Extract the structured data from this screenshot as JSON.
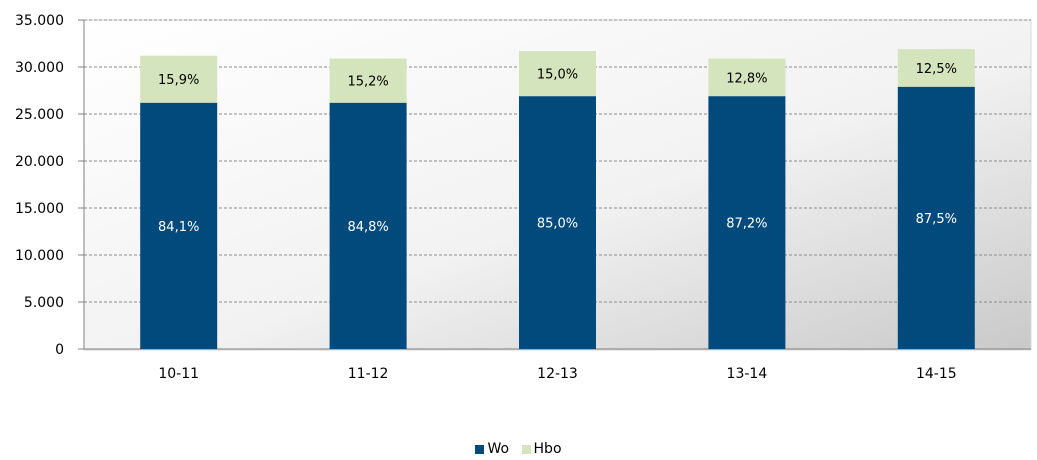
{
  "chart_data": {
    "type": "bar",
    "stacked": true,
    "title": "",
    "xlabel": "",
    "ylabel": "",
    "categories": [
      "10-11",
      "11-12",
      "12-13",
      "13-14",
      "14-15"
    ],
    "series": [
      {
        "name": "Wo",
        "color": "#034a7c",
        "values": [
          26200,
          26200,
          26900,
          26900,
          27900
        ],
        "labels": [
          "84,1%",
          "84,8%",
          "85,0%",
          "87,2%",
          "87,5%"
        ]
      },
      {
        "name": "Hbo",
        "color": "#d4e4bc",
        "values": [
          5000,
          4700,
          4800,
          4000,
          4000
        ],
        "labels": [
          "15,9%",
          "15,2%",
          "15,0%",
          "12,8%",
          "12,5%"
        ]
      }
    ],
    "ylim": [
      0,
      35000
    ],
    "yticks": [
      0,
      5000,
      10000,
      15000,
      20000,
      25000,
      30000,
      35000
    ],
    "ytick_labels": [
      "0",
      "5.000",
      "10.000",
      "15.000",
      "20.000",
      "25.000",
      "30.000",
      "35.000"
    ],
    "grid": true,
    "legend_position": "bottom"
  }
}
